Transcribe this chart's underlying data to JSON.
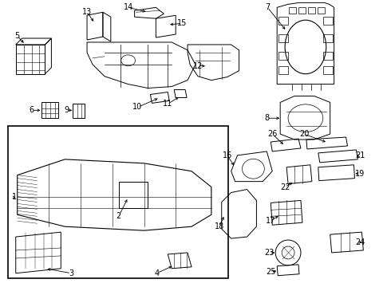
{
  "bg_color": "#ffffff",
  "line_color": "#000000",
  "text_color": "#000000",
  "font_size_numbers": 7,
  "fig_width": 4.9,
  "fig_height": 3.6,
  "dpi": 100
}
